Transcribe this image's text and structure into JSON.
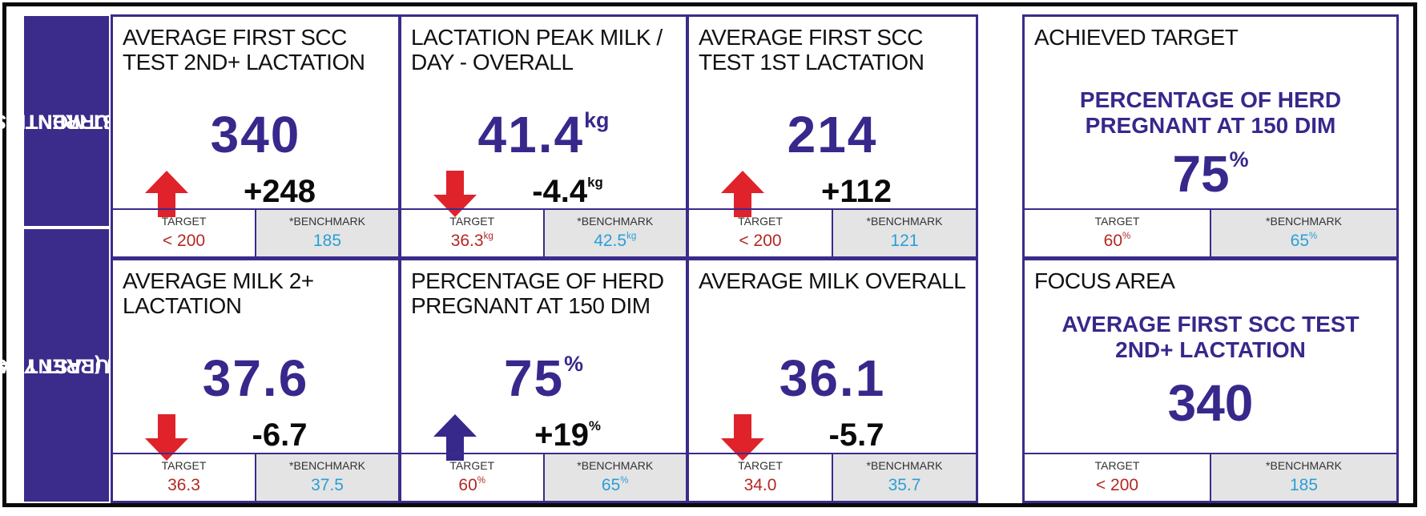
{
  "row_labels": [
    {
      "line1": "CURRENT VS.",
      "line2": "LAST MONTH"
    },
    {
      "line1": "CURRENT VS.",
      "line2": "MONTH (LAST YEAR)"
    }
  ],
  "footer_labels": {
    "target": "TARGET",
    "benchmark": "*BENCHMARK"
  },
  "cards": [
    {
      "title": "AVERAGE FIRST SCC TEST 2ND+ LACTATION",
      "value": "340",
      "value_unit": "",
      "direction": "up",
      "arrow_color": "#e0222a",
      "change": "+248",
      "change_unit": "",
      "target": "< 200",
      "target_unit": "",
      "benchmark": "185",
      "benchmark_unit": ""
    },
    {
      "title": "LACTATION PEAK MILK / DAY - OVERALL",
      "value": "41.4",
      "value_unit": "kg",
      "direction": "down",
      "arrow_color": "#e0222a",
      "change": "-4.4",
      "change_unit": "kg",
      "target": "36.3",
      "target_unit": "kg",
      "benchmark": "42.5",
      "benchmark_unit": "kg"
    },
    {
      "title": "AVERAGE FIRST SCC TEST 1ST LACTATION",
      "value": "214",
      "value_unit": "",
      "direction": "up",
      "arrow_color": "#e0222a",
      "change": "+112",
      "change_unit": "",
      "target": "< 200",
      "target_unit": "",
      "benchmark": "121",
      "benchmark_unit": ""
    },
    {
      "title": "AVERAGE MILK 2+ LACTATION",
      "value": "37.6",
      "value_unit": "",
      "direction": "down",
      "arrow_color": "#e0222a",
      "change": "-6.7",
      "change_unit": "",
      "target": "36.3",
      "target_unit": "",
      "benchmark": "37.5",
      "benchmark_unit": ""
    },
    {
      "title": "PERCENTAGE OF HERD PREGNANT AT 150 DIM",
      "value": "75",
      "value_unit": "%",
      "direction": "up",
      "arrow_color": "#37288c",
      "change": "+19",
      "change_unit": "%",
      "target": "60",
      "target_unit": "%",
      "benchmark": "65",
      "benchmark_unit": "%"
    },
    {
      "title": "AVERAGE MILK OVERALL",
      "value": "36.1",
      "value_unit": "",
      "direction": "down",
      "arrow_color": "#e0222a",
      "change": "-5.7",
      "change_unit": "",
      "target": "34.0",
      "target_unit": "",
      "benchmark": "35.7",
      "benchmark_unit": ""
    }
  ],
  "achieved": {
    "title": "ACHIEVED TARGET",
    "metric": "PERCENTAGE OF HERD PREGNANT AT 150 DIM",
    "value": "75",
    "value_unit": "%",
    "target": "60",
    "target_unit": "%",
    "benchmark": "65",
    "benchmark_unit": "%"
  },
  "focus": {
    "title": "FOCUS AREA",
    "metric": "AVERAGE FIRST SCC TEST 2ND+ LACTATION",
    "value": "340",
    "target": "< 200",
    "benchmark": "185"
  },
  "colors": {
    "primary": "#37288c",
    "border": "#3b2b8a",
    "up_red": "#e0222a",
    "target_red": "#b42822",
    "benchmark_blue": "#2a9fd6"
  }
}
